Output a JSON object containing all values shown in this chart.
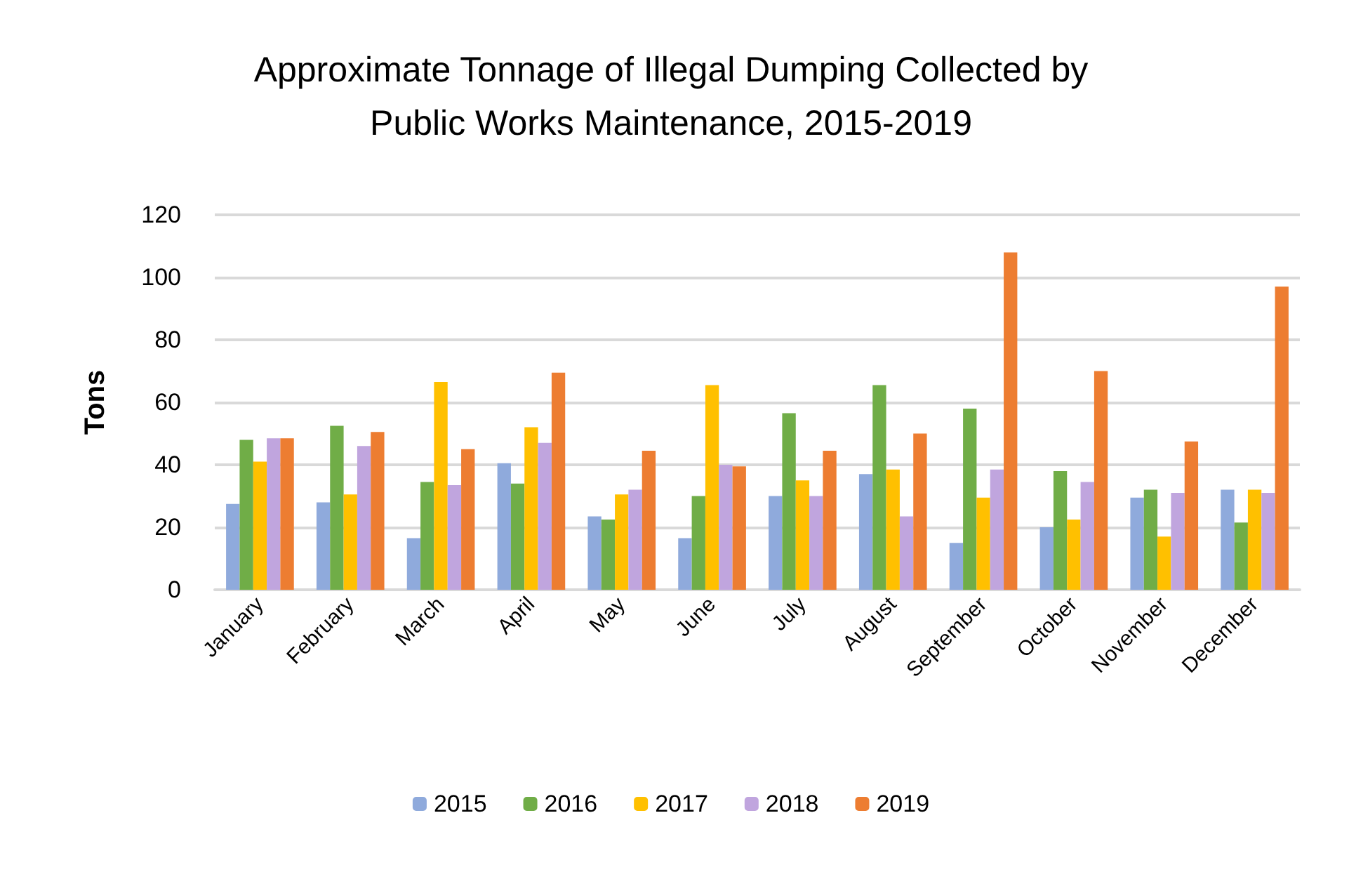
{
  "chart_data": {
    "type": "bar",
    "title": "Approximate Tonnage of Illegal Dumping Collected by\nPublic Works Maintenance, 2015-2019",
    "ylabel": "Tons",
    "categories": [
      "January",
      "February",
      "March",
      "April",
      "May",
      "June",
      "July",
      "August",
      "September",
      "October",
      "November",
      "December"
    ],
    "series": [
      {
        "name": "2015",
        "color": "#8faadc",
        "values": [
          27.5,
          28,
          16.5,
          40.5,
          23.5,
          16.5,
          30,
          37,
          15,
          20,
          29.5,
          32
        ]
      },
      {
        "name": "2016",
        "color": "#70ad47",
        "values": [
          48,
          52.5,
          34.5,
          34,
          22.5,
          30,
          56.5,
          65.5,
          58,
          38,
          32,
          21.5
        ]
      },
      {
        "name": "2017",
        "color": "#ffc000",
        "values": [
          41,
          30.5,
          66.5,
          52,
          30.5,
          65.5,
          35,
          38.5,
          29.5,
          22.5,
          17,
          32
        ]
      },
      {
        "name": "2018",
        "color": "#c0a5de",
        "values": [
          48.5,
          46,
          33.5,
          47,
          32,
          40,
          30,
          23.5,
          38.5,
          34.5,
          31,
          31
        ]
      },
      {
        "name": "2019",
        "color": "#ed7d31",
        "values": [
          48.5,
          50.5,
          45,
          69.5,
          44.5,
          39.5,
          44.5,
          50,
          108,
          70,
          47.5,
          97
        ]
      }
    ],
    "ylim": [
      0,
      120
    ],
    "yticks": [
      0,
      20,
      40,
      60,
      80,
      100,
      120
    ],
    "grid": "y",
    "legend": "bottom"
  }
}
